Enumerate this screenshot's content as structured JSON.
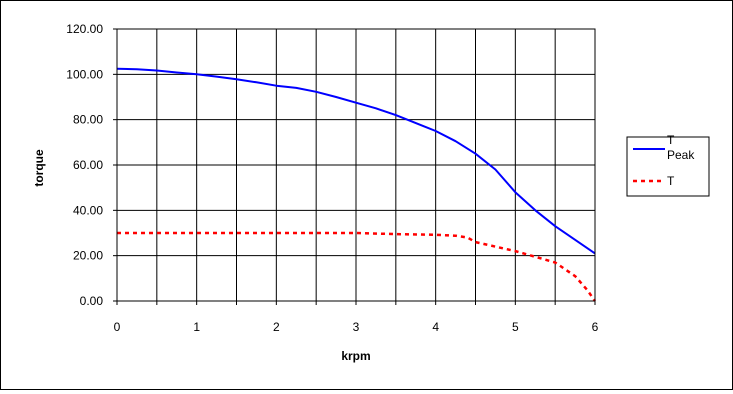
{
  "chart_data": {
    "type": "line",
    "title": "",
    "xlabel": "krpm",
    "ylabel": "torque",
    "xlim": [
      0,
      6
    ],
    "ylim": [
      0,
      120
    ],
    "x_ticks": [
      "0",
      "1",
      "2",
      "3",
      "4",
      "5",
      "6"
    ],
    "y_ticks": [
      "0.00",
      "20.00",
      "40.00",
      "60.00",
      "80.00",
      "100.00",
      "120.00"
    ],
    "grid": true,
    "legend_position": "right",
    "series": [
      {
        "name": "T Peak",
        "color": "#0000ff",
        "style": "solid",
        "x": [
          0,
          0.25,
          0.5,
          0.75,
          1,
          1.25,
          1.5,
          1.75,
          2,
          2.25,
          2.5,
          2.75,
          3,
          3.25,
          3.5,
          3.75,
          4,
          4.25,
          4.5,
          4.75,
          5,
          5.25,
          5.5,
          5.75,
          6
        ],
        "y": [
          102.5,
          102.2,
          101.7,
          100.8,
          100.0,
          99.0,
          97.8,
          96.5,
          95.0,
          94.0,
          92.3,
          90.0,
          87.5,
          85.0,
          82.0,
          78.5,
          75.0,
          70.5,
          65.0,
          58.0,
          48.0,
          40.0,
          33.0,
          27.0,
          21.0
        ]
      },
      {
        "name": "T",
        "color": "#ff0000",
        "style": "dashed",
        "x": [
          0,
          0.5,
          1,
          1.5,
          2,
          2.5,
          3,
          3.5,
          4,
          4.25,
          4.4,
          4.5,
          4.75,
          5,
          5.25,
          5.5,
          5.75,
          5.9,
          6
        ],
        "y": [
          30,
          30,
          30,
          30,
          30,
          30,
          30,
          29.5,
          29.2,
          28.8,
          28.0,
          26.0,
          24.0,
          22.0,
          19.5,
          17.0,
          11.0,
          5.0,
          0
        ]
      }
    ]
  }
}
